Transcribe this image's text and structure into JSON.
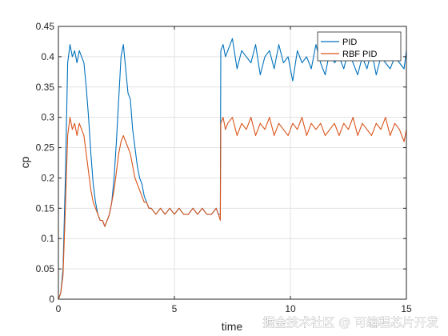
{
  "chart_data": {
    "type": "line",
    "title": "",
    "xlabel": "time",
    "ylabel": "cp",
    "xlim": [
      0,
      15
    ],
    "ylim": [
      0,
      0.45
    ],
    "xticks": [
      0,
      5,
      10,
      15
    ],
    "yticks": [
      0,
      0.05,
      0.1,
      0.15,
      0.2,
      0.25,
      0.3,
      0.35,
      0.4,
      0.45
    ],
    "grid": true,
    "legend_position": "top-right",
    "series": [
      {
        "name": "PID",
        "color": "#0072BD",
        "x": [
          0,
          0.1,
          0.2,
          0.3,
          0.4,
          0.5,
          0.6,
          0.7,
          0.8,
          0.9,
          1.0,
          1.1,
          1.2,
          1.3,
          1.4,
          1.5,
          1.6,
          1.7,
          1.8,
          1.9,
          2.0,
          2.1,
          2.2,
          2.3,
          2.4,
          2.5,
          2.6,
          2.7,
          2.8,
          2.9,
          3.0,
          3.1,
          3.2,
          3.3,
          3.4,
          3.5,
          3.6,
          3.7,
          3.8,
          3.9,
          4.0,
          4.2,
          4.4,
          4.6,
          4.8,
          5.0,
          5.2,
          5.4,
          5.6,
          5.8,
          6.0,
          6.2,
          6.4,
          6.6,
          6.8,
          6.9,
          6.98,
          7.0,
          7.1,
          7.2,
          7.3,
          7.5,
          7.7,
          7.9,
          8.1,
          8.3,
          8.5,
          8.7,
          8.9,
          9.1,
          9.3,
          9.5,
          9.7,
          9.9,
          10.1,
          10.3,
          10.5,
          10.7,
          10.9,
          11.1,
          11.3,
          11.5,
          11.7,
          11.9,
          12.1,
          12.3,
          12.5,
          12.7,
          12.9,
          13.1,
          13.3,
          13.5,
          13.7,
          13.9,
          14.1,
          14.3,
          14.5,
          14.7,
          14.9,
          15.0
        ],
        "y": [
          0.0,
          0.01,
          0.05,
          0.2,
          0.39,
          0.42,
          0.4,
          0.41,
          0.39,
          0.41,
          0.4,
          0.39,
          0.35,
          0.3,
          0.24,
          0.19,
          0.16,
          0.14,
          0.13,
          0.13,
          0.12,
          0.13,
          0.14,
          0.16,
          0.2,
          0.26,
          0.33,
          0.4,
          0.42,
          0.38,
          0.34,
          0.33,
          0.28,
          0.25,
          0.22,
          0.2,
          0.19,
          0.17,
          0.16,
          0.15,
          0.15,
          0.14,
          0.15,
          0.14,
          0.15,
          0.14,
          0.15,
          0.14,
          0.14,
          0.15,
          0.14,
          0.15,
          0.14,
          0.14,
          0.15,
          0.14,
          0.14,
          0.41,
          0.42,
          0.4,
          0.41,
          0.43,
          0.38,
          0.41,
          0.4,
          0.39,
          0.42,
          0.37,
          0.4,
          0.41,
          0.38,
          0.42,
          0.39,
          0.4,
          0.36,
          0.41,
          0.39,
          0.4,
          0.38,
          0.42,
          0.39,
          0.37,
          0.41,
          0.39,
          0.4,
          0.38,
          0.41,
          0.39,
          0.37,
          0.4,
          0.38,
          0.41,
          0.37,
          0.4,
          0.39,
          0.38,
          0.4,
          0.39,
          0.38,
          0.41
        ]
      },
      {
        "name": "RBF PID",
        "color": "#D95319",
        "x": [
          0,
          0.1,
          0.2,
          0.3,
          0.4,
          0.5,
          0.6,
          0.7,
          0.8,
          0.9,
          1.0,
          1.1,
          1.2,
          1.3,
          1.4,
          1.5,
          1.6,
          1.7,
          1.8,
          1.9,
          2.0,
          2.1,
          2.2,
          2.3,
          2.4,
          2.5,
          2.6,
          2.7,
          2.8,
          2.9,
          3.0,
          3.1,
          3.2,
          3.3,
          3.4,
          3.5,
          3.6,
          3.7,
          3.8,
          3.9,
          4.0,
          4.2,
          4.4,
          4.6,
          4.8,
          5.0,
          5.2,
          5.4,
          5.6,
          5.8,
          6.0,
          6.2,
          6.4,
          6.6,
          6.8,
          6.9,
          6.98,
          7.0,
          7.1,
          7.2,
          7.3,
          7.5,
          7.7,
          7.9,
          8.1,
          8.3,
          8.5,
          8.7,
          8.9,
          9.1,
          9.3,
          9.5,
          9.7,
          9.9,
          10.1,
          10.3,
          10.5,
          10.7,
          10.9,
          11.1,
          11.3,
          11.5,
          11.7,
          11.9,
          12.1,
          12.3,
          12.5,
          12.7,
          12.9,
          13.1,
          13.3,
          13.5,
          13.7,
          13.9,
          14.1,
          14.3,
          14.5,
          14.7,
          14.9,
          15.0
        ],
        "y": [
          0.0,
          0.01,
          0.04,
          0.15,
          0.27,
          0.3,
          0.28,
          0.29,
          0.27,
          0.29,
          0.28,
          0.27,
          0.24,
          0.21,
          0.18,
          0.16,
          0.15,
          0.14,
          0.13,
          0.13,
          0.12,
          0.13,
          0.14,
          0.16,
          0.18,
          0.21,
          0.24,
          0.26,
          0.27,
          0.26,
          0.25,
          0.24,
          0.22,
          0.2,
          0.19,
          0.18,
          0.17,
          0.16,
          0.16,
          0.15,
          0.15,
          0.14,
          0.15,
          0.14,
          0.15,
          0.14,
          0.15,
          0.14,
          0.14,
          0.15,
          0.14,
          0.15,
          0.14,
          0.14,
          0.15,
          0.14,
          0.13,
          0.29,
          0.3,
          0.28,
          0.29,
          0.3,
          0.27,
          0.29,
          0.28,
          0.3,
          0.27,
          0.29,
          0.28,
          0.3,
          0.27,
          0.29,
          0.28,
          0.27,
          0.29,
          0.28,
          0.3,
          0.27,
          0.29,
          0.28,
          0.29,
          0.27,
          0.28,
          0.29,
          0.27,
          0.29,
          0.28,
          0.3,
          0.27,
          0.29,
          0.28,
          0.27,
          0.29,
          0.28,
          0.3,
          0.27,
          0.29,
          0.28,
          0.26,
          0.28
        ]
      }
    ]
  },
  "watermark": "掘金技术社区 @ 可编程芯片开发"
}
